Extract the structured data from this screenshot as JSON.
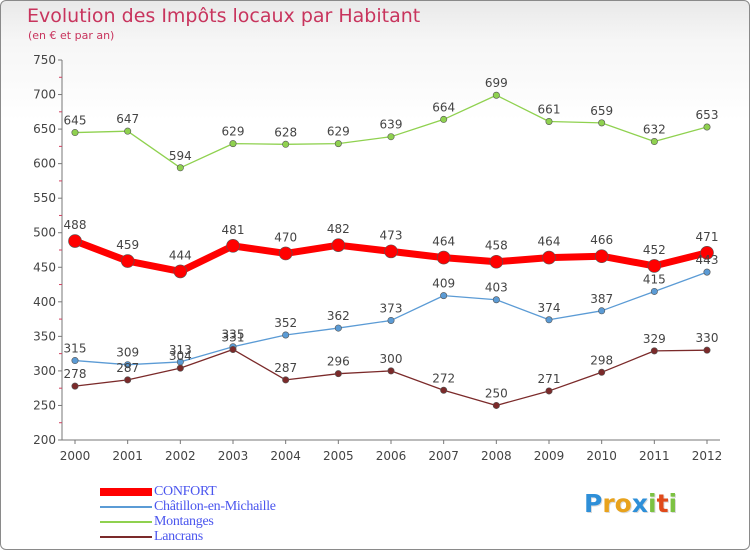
{
  "title": "Evolution des Impôts locaux par Habitant",
  "subtitle": "(en € et par an)",
  "logo_letters": [
    {
      "ch": "P",
      "color": "#2e8fd8"
    },
    {
      "ch": "r",
      "color": "#e8a21c"
    },
    {
      "ch": "o",
      "color": "#e8a21c"
    },
    {
      "ch": "x",
      "color": "#2e8fd8"
    },
    {
      "ch": "i",
      "color": "#7cc242"
    },
    {
      "ch": "t",
      "color": "#e04a1a"
    },
    {
      "ch": "i",
      "color": "#7cc242"
    }
  ],
  "chart_data": {
    "type": "line",
    "title": "Evolution des Impôts locaux par Habitant",
    "subtitle": "(en € et par an)",
    "xlabel": "",
    "ylabel": "",
    "x": [
      "2000",
      "2001",
      "2002",
      "2003",
      "2004",
      "2005",
      "2006",
      "2007",
      "2008",
      "2009",
      "2010",
      "2011",
      "2012"
    ],
    "ylim": [
      200,
      750
    ],
    "yticks": [
      "200",
      "250",
      "300",
      "350",
      "400",
      "450",
      "500",
      "550",
      "600",
      "650",
      "700",
      "750"
    ],
    "grid": false,
    "legend_position": "bottom-left",
    "series": [
      {
        "name": "CONFORT",
        "color": "#ff0000",
        "values": [
          488,
          459,
          444,
          481,
          470,
          482,
          473,
          464,
          458,
          464,
          466,
          452,
          471
        ]
      },
      {
        "name": "Châtillon-en-Michaille",
        "color": "#5b9bd5",
        "values": [
          315,
          309,
          313,
          335,
          352,
          362,
          373,
          409,
          403,
          374,
          387,
          415,
          443
        ]
      },
      {
        "name": "Montanges",
        "color": "#8fd14f",
        "values": [
          645,
          647,
          594,
          629,
          628,
          629,
          639,
          664,
          699,
          661,
          659,
          632,
          653
        ]
      },
      {
        "name": "Lancrans",
        "color": "#7b2a2a",
        "values": [
          278,
          287,
          304,
          331,
          287,
          296,
          300,
          272,
          250,
          271,
          298,
          329,
          330
        ]
      }
    ]
  }
}
